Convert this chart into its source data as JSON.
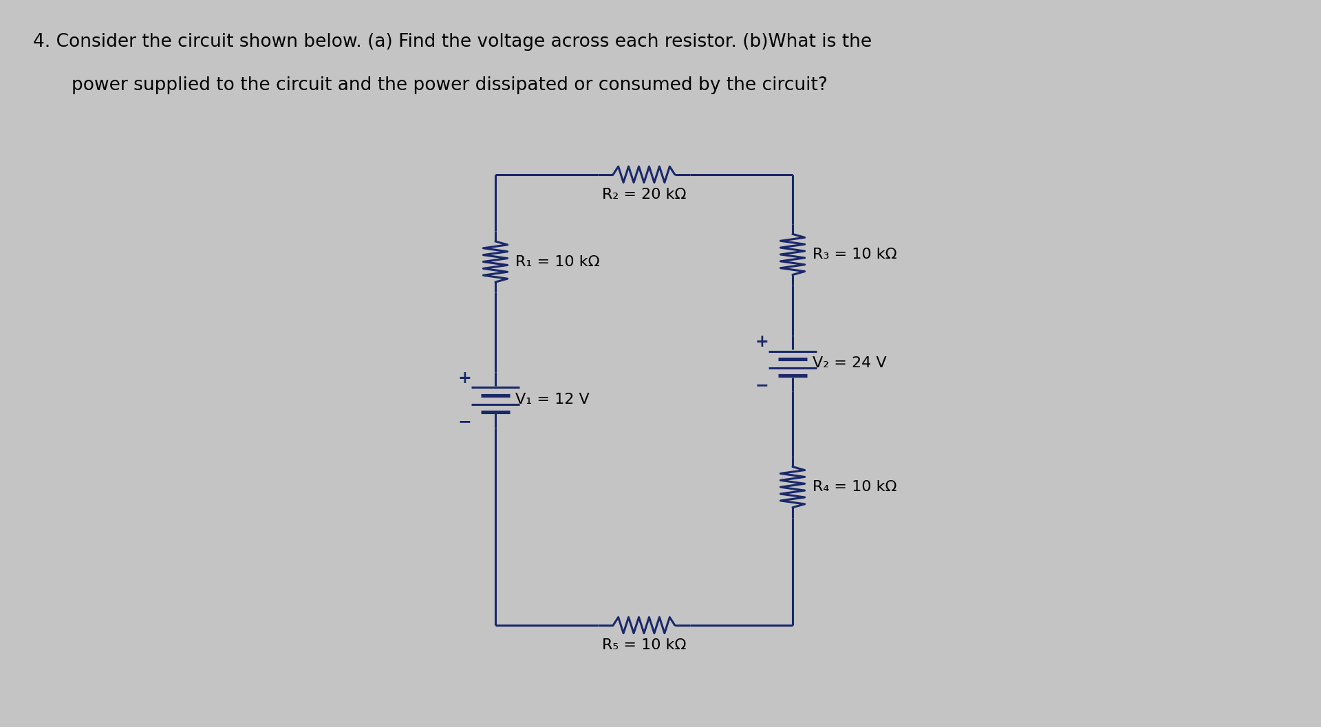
{
  "bg_color": "#c4c4c4",
  "title_line1": "4. Consider the circuit shown below. (a) Find the voltage across each resistor. (b)What is the",
  "title_line2": "power supplied to the circuit and the power dissipated or consumed by the circuit?",
  "title_fontsize": 19,
  "circuit_color": "#1a2869",
  "circuit_lw": 2.2,
  "label_fontsize": 16,
  "components": {
    "R1_label": "R₁ = 10 kΩ",
    "R2_label": "R₂ = 20 kΩ",
    "R3_label": "R₃ = 10 kΩ",
    "R4_label": "R₄ = 10 kΩ",
    "R5_label": "R₅ = 10 kΩ",
    "V1_label": "V₁ = 12 V",
    "V2_label": "V₂ = 24 V"
  },
  "layout": {
    "LTx": 4.5,
    "LTy": 7.6,
    "RTx": 7.2,
    "RTy": 7.6,
    "LBx": 4.5,
    "LBy": 1.4,
    "RBx": 7.2,
    "RBy": 1.4,
    "R2x": 5.85,
    "R2y": 7.6,
    "R1x": 4.5,
    "R1y": 6.4,
    "V1x": 4.5,
    "V1y": 4.5,
    "R3x": 7.2,
    "R3y": 6.5,
    "V2x": 7.2,
    "V2y": 5.0,
    "R4x": 7.2,
    "R4y": 3.3,
    "R5x": 5.85,
    "R5y": 1.4
  }
}
